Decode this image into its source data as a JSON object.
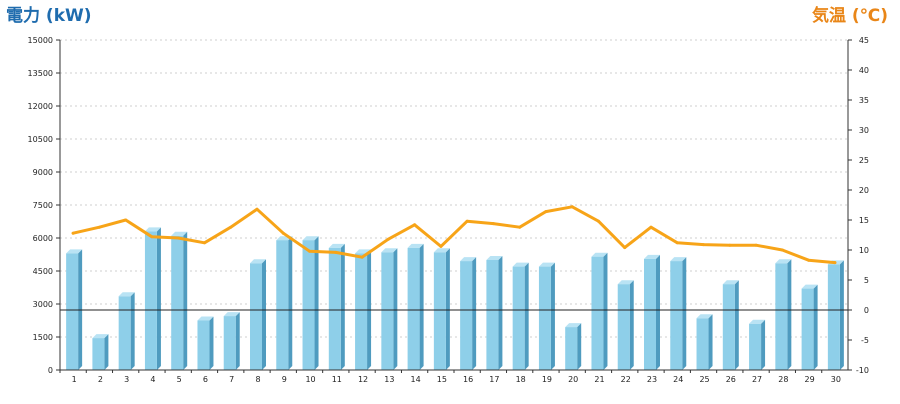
{
  "chart_data": {
    "type": "bar",
    "x": [
      "1",
      "2",
      "3",
      "4",
      "5",
      "6",
      "7",
      "8",
      "9",
      "10",
      "11",
      "12",
      "13",
      "14",
      "15",
      "16",
      "17",
      "18",
      "19",
      "20",
      "21",
      "22",
      "23",
      "24",
      "25",
      "26",
      "27",
      "28",
      "29",
      "30"
    ],
    "series": [
      {
        "name": "電力 (kW)",
        "type": "bar",
        "axis": "left",
        "color": "#8ecfe9",
        "values": [
          5300,
          1450,
          3350,
          6300,
          6100,
          2250,
          2450,
          4850,
          5900,
          5900,
          5550,
          5300,
          5350,
          5550,
          5350,
          4950,
          5000,
          4700,
          4700,
          1950,
          5150,
          3900,
          5050,
          4950,
          2350,
          3900,
          2100,
          4850,
          3700,
          4800
        ]
      },
      {
        "name": "気温 (℃)",
        "type": "line",
        "axis": "right",
        "color": "#f7a418",
        "values": [
          12.8,
          13.8,
          15.0,
          12.2,
          12.0,
          11.2,
          13.8,
          16.8,
          12.8,
          9.8,
          9.6,
          8.8,
          11.8,
          14.2,
          10.6,
          14.8,
          14.4,
          13.8,
          16.4,
          17.2,
          14.8,
          10.4,
          13.8,
          11.2,
          10.9,
          10.8,
          10.8,
          10.0,
          8.3,
          7.9
        ]
      }
    ],
    "y_left": {
      "label": "電力 (kW)",
      "min": 0,
      "max": 15000,
      "ticks": [
        0,
        1500,
        3000,
        4500,
        6000,
        7500,
        9000,
        10500,
        12000,
        13500,
        15000
      ]
    },
    "y_right": {
      "label": "気温 (℃)",
      "min": -10,
      "max": 45,
      "ticks": [
        -10,
        -5,
        0,
        5,
        10,
        15,
        20,
        25,
        30,
        35,
        40,
        45
      ]
    },
    "grid": true,
    "grid_style": "dashed-horizontal",
    "zero_line_right_axis": 0,
    "legend": "none"
  }
}
